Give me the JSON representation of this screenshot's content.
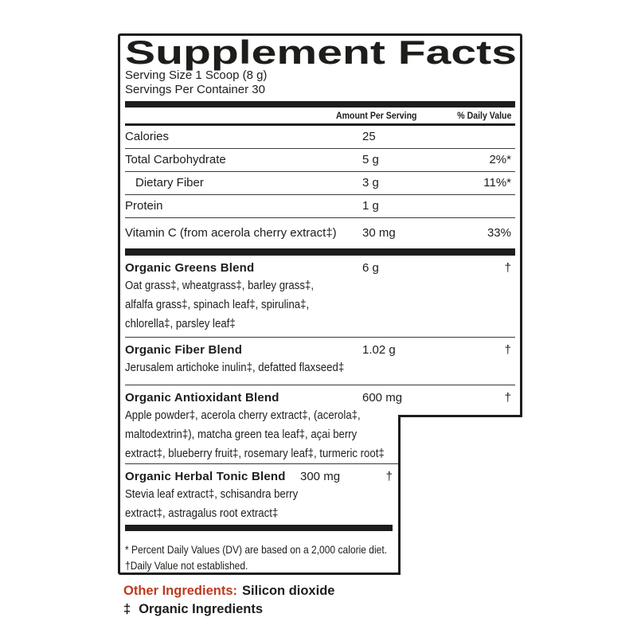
{
  "label": {
    "title": "Supplement Facts",
    "serving_size": "Serving Size 1 Scoop (8 g)",
    "servings_per_container": "Servings Per Container 30",
    "columns": {
      "amount": "Amount Per Serving",
      "daily_value": "% Daily Value"
    },
    "nutrients": [
      {
        "name": "Calories",
        "amount": "25",
        "dv": ""
      },
      {
        "name": "Total Carbohydrate",
        "amount": "5 g",
        "dv": "2%*"
      },
      {
        "name": "Dietary Fiber",
        "amount": "3 g",
        "dv": "11%*"
      },
      {
        "name": "Protein",
        "amount": "1 g",
        "dv": ""
      },
      {
        "name": "Vitamin C  (from acerola cherry extract‡)",
        "amount": "30 mg",
        "dv": "33%"
      }
    ],
    "blends": [
      {
        "name": "Organic Greens Blend",
        "amount": "6 g",
        "dv": "†",
        "ingredients": "Oat grass‡, wheatgrass‡, barley grass‡,\nalfalfa grass‡, spinach leaf‡, spirulina‡,\nchlorella‡, parsley leaf‡"
      },
      {
        "name": "Organic Fiber Blend",
        "amount": "1.02 g",
        "dv": "†",
        "ingredients": "Jerusalem artichoke inulin‡, defatted flaxseed‡"
      },
      {
        "name": "Organic Antioxidant Blend",
        "amount": "600 mg",
        "dv": "†",
        "ingredients": "Apple powder‡, acerola cherry extract‡, (acerola‡,\nmaltodextrin‡), matcha green tea leaf‡, açai berry\nextract‡, blueberry fruit‡, rosemary leaf‡, turmeric root‡"
      },
      {
        "name": "Organic Herbal Tonic Blend",
        "amount": "300 mg",
        "dv": "†",
        "ingredients": "Stevia leaf extract‡, schisandra berry\nextract‡, astragalus root extract‡"
      }
    ],
    "footnotes": [
      "* Percent Daily Values (DV) are based on a 2,000 calorie diet.",
      "†Daily Value not established."
    ]
  },
  "below": {
    "other_ingredients_label": "Other Ingredients:",
    "other_ingredients_value": "Silicon dioxide",
    "organic_marker": "‡",
    "organic_note": "Organic Ingredients"
  },
  "colors": {
    "accent_red": "#bd3a1e",
    "text": "#1d1d1b"
  }
}
